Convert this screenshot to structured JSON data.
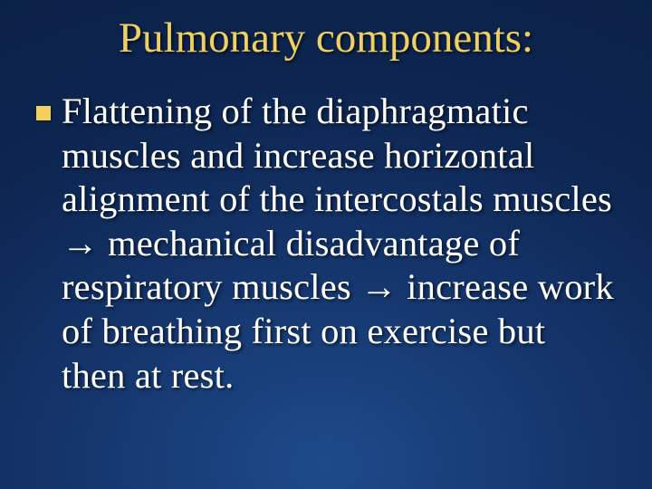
{
  "slide": {
    "title": "Pulmonary components:",
    "bullet_text": "Flattening of the diaphragmatic muscles and increase horizontal alignment of the intercostals muscles →  mechanical disadvantage of respiratory muscles →  increase work of breathing first on exercise but then at rest."
  },
  "style": {
    "title_color": "#f0d060",
    "body_color": "#ffffff",
    "bullet_color": "#f0d060",
    "background_gradient_inner": "#1e4a8a",
    "background_gradient_outer": "#0a1f42",
    "title_fontsize": 47,
    "body_fontsize": 40.5,
    "bullet_size": 16,
    "font_family": "Garamond, serif"
  }
}
